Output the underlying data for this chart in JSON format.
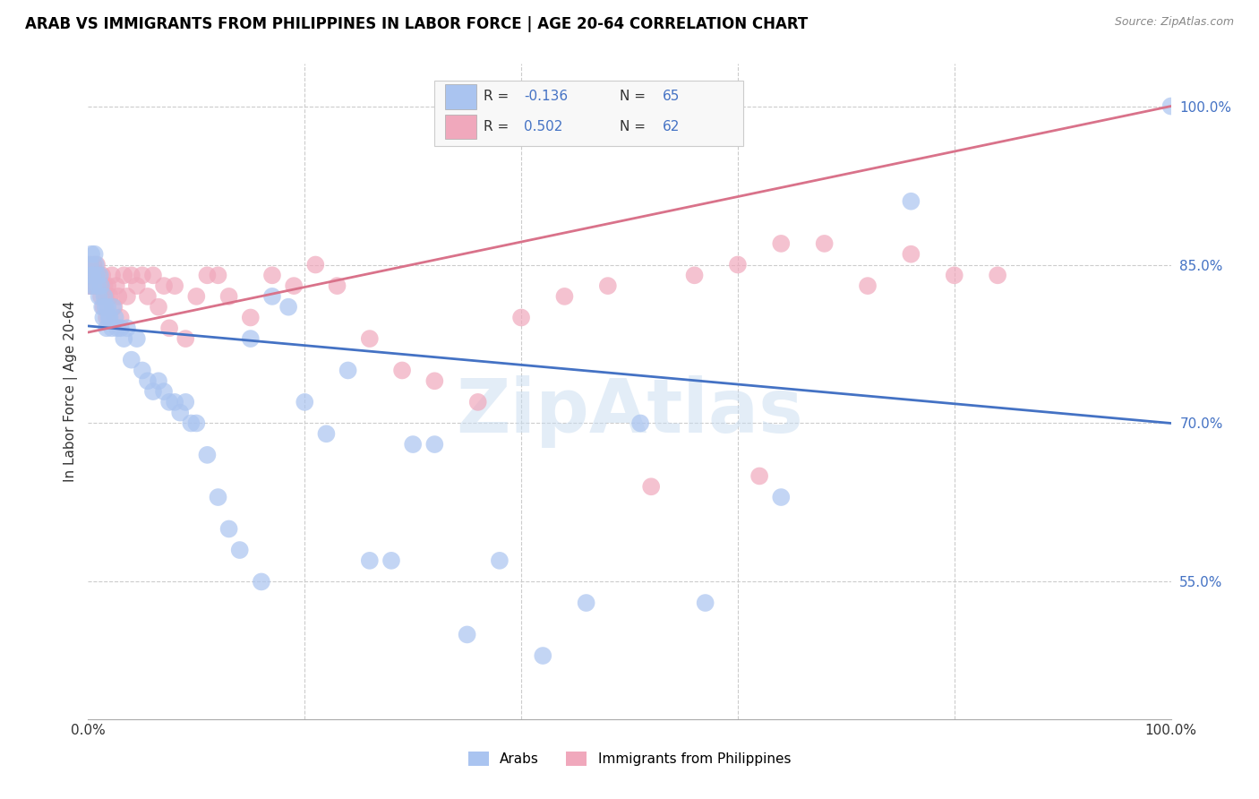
{
  "title": "ARAB VS IMMIGRANTS FROM PHILIPPINES IN LABOR FORCE | AGE 20-64 CORRELATION CHART",
  "source": "Source: ZipAtlas.com",
  "ylabel": "In Labor Force | Age 20-64",
  "watermark": "ZipAtlas",
  "xlim": [
    0.0,
    1.0
  ],
  "ylim": [
    0.42,
    1.04
  ],
  "grid_color": "#cccccc",
  "arab_color": "#aac4f0",
  "arab_edge_color": "#aac4f0",
  "phil_color": "#f0a8bc",
  "phil_edge_color": "#f0a8bc",
  "arab_line_color": "#4472c4",
  "phil_line_color": "#d9728a",
  "legend_R_color": "#4472c4",
  "legend_N_color": "#4472c4",
  "arab_line_start_y": 0.792,
  "arab_line_end_y": 0.7,
  "phil_line_start_y": 0.786,
  "phil_line_end_y": 1.0,
  "arab_scatter_x": [
    0.001,
    0.002,
    0.003,
    0.003,
    0.004,
    0.005,
    0.006,
    0.007,
    0.008,
    0.009,
    0.01,
    0.011,
    0.012,
    0.013,
    0.014,
    0.015,
    0.016,
    0.017,
    0.018,
    0.019,
    0.02,
    0.022,
    0.023,
    0.025,
    0.027,
    0.03,
    0.033,
    0.036,
    0.04,
    0.045,
    0.05,
    0.055,
    0.06,
    0.065,
    0.07,
    0.075,
    0.08,
    0.085,
    0.09,
    0.095,
    0.1,
    0.11,
    0.12,
    0.13,
    0.14,
    0.15,
    0.16,
    0.17,
    0.185,
    0.2,
    0.22,
    0.24,
    0.26,
    0.28,
    0.3,
    0.32,
    0.35,
    0.38,
    0.42,
    0.46,
    0.51,
    0.57,
    0.64,
    0.76,
    1.0
  ],
  "arab_scatter_y": [
    0.83,
    0.85,
    0.84,
    0.86,
    0.84,
    0.83,
    0.86,
    0.85,
    0.84,
    0.83,
    0.82,
    0.84,
    0.83,
    0.81,
    0.8,
    0.82,
    0.81,
    0.79,
    0.81,
    0.8,
    0.8,
    0.79,
    0.81,
    0.8,
    0.79,
    0.79,
    0.78,
    0.79,
    0.76,
    0.78,
    0.75,
    0.74,
    0.73,
    0.74,
    0.73,
    0.72,
    0.72,
    0.71,
    0.72,
    0.7,
    0.7,
    0.67,
    0.63,
    0.6,
    0.58,
    0.78,
    0.55,
    0.82,
    0.81,
    0.72,
    0.69,
    0.75,
    0.57,
    0.57,
    0.68,
    0.68,
    0.5,
    0.57,
    0.48,
    0.53,
    0.7,
    0.53,
    0.63,
    0.91,
    1.0
  ],
  "phil_scatter_x": [
    0.001,
    0.002,
    0.003,
    0.004,
    0.005,
    0.006,
    0.007,
    0.008,
    0.009,
    0.01,
    0.011,
    0.012,
    0.013,
    0.014,
    0.015,
    0.016,
    0.017,
    0.018,
    0.02,
    0.022,
    0.024,
    0.026,
    0.028,
    0.03,
    0.033,
    0.036,
    0.04,
    0.045,
    0.05,
    0.055,
    0.06,
    0.065,
    0.07,
    0.075,
    0.08,
    0.09,
    0.1,
    0.11,
    0.12,
    0.13,
    0.15,
    0.17,
    0.19,
    0.21,
    0.23,
    0.26,
    0.29,
    0.32,
    0.36,
    0.4,
    0.44,
    0.48,
    0.52,
    0.56,
    0.6,
    0.64,
    0.68,
    0.72,
    0.76,
    0.8,
    0.84,
    0.62
  ],
  "phil_scatter_y": [
    0.83,
    0.85,
    0.83,
    0.84,
    0.85,
    0.84,
    0.83,
    0.85,
    0.83,
    0.84,
    0.83,
    0.82,
    0.84,
    0.81,
    0.83,
    0.82,
    0.8,
    0.83,
    0.82,
    0.84,
    0.81,
    0.83,
    0.82,
    0.8,
    0.84,
    0.82,
    0.84,
    0.83,
    0.84,
    0.82,
    0.84,
    0.81,
    0.83,
    0.79,
    0.83,
    0.78,
    0.82,
    0.84,
    0.84,
    0.82,
    0.8,
    0.84,
    0.83,
    0.85,
    0.83,
    0.78,
    0.75,
    0.74,
    0.72,
    0.8,
    0.82,
    0.83,
    0.64,
    0.84,
    0.85,
    0.87,
    0.87,
    0.83,
    0.86,
    0.84,
    0.84,
    0.65
  ]
}
